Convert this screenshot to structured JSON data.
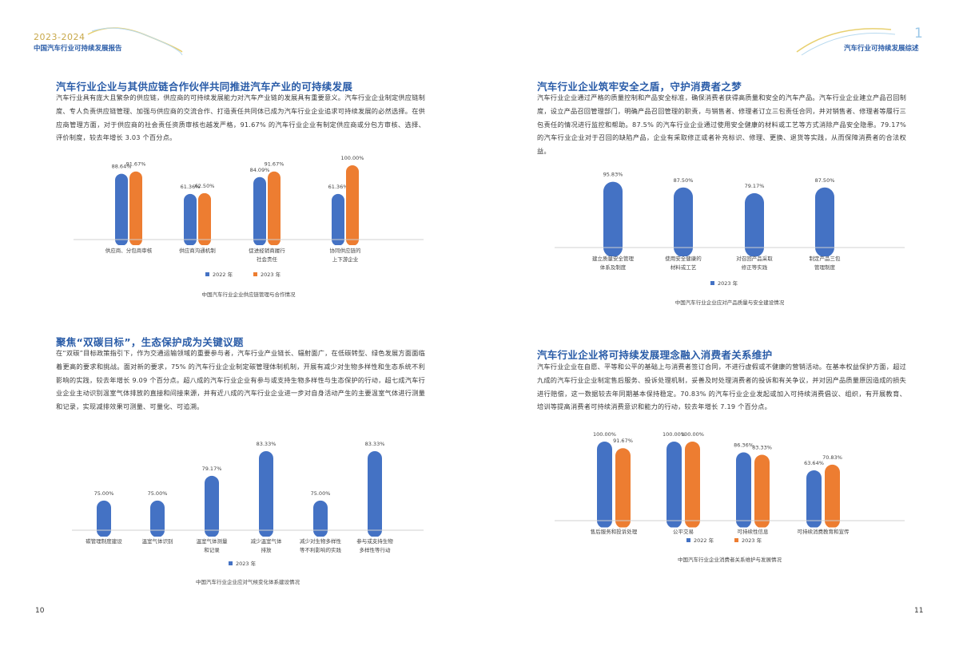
{
  "header_left": {
    "years": "2023-2024",
    "report_title": "中国汽车行业可持续发展报告"
  },
  "header_right": {
    "chapter_number": "1",
    "chapter_title": "汽车行业可持续发展综述"
  },
  "page_numbers": {
    "left": "10",
    "right": "11"
  },
  "sections": [
    {
      "title": "汽车行业企业与其供应链合作伙伴共同推进汽车产业的可持续发展",
      "body": "汽车行业具有庞大且繁杂的供应链，供应商的可持续发展能力对汽车产业链的发展具有重要意义。汽车行业企业制定供应链制度、专人负责供应链管理、加强与供应商的交流合作、打造责任共同体已成为汽车行业企业追求可持续发展的必然选择。在供应商管理方面，对于供应商的社会责任资质审核也越发严格，91.67% 的汽车行业企业有制定供应商或分包方审核、选择、评价制度，较去年增长 3.03 个百分点。"
    },
    {
      "title": "汽车行业企业筑牢安全之盾，守护消费者之梦",
      "body": "汽车行业企业通过严格的质量控制和产品安全标准，确保消费者获得高质量和安全的汽车产品。汽车行业企业建立产品召回制度，设立产品召回管理部门，明确产品召回管理的职责，与销售者、修理者订立三包责任合同，并对销售者、修理者等履行三包责任的情况进行监控和帮助。87.5% 的汽车行业企业通过使用安全健康的材料或工艺等方式消除产品安全隐患。79.17% 的汽车行业企业对于召回的缺陷产品，企业有采取修正或者补充标识、修理、更换、退货等实践，从而保障消费者的合法权益。"
    },
    {
      "title": "聚焦“双碳目标”，生态保护成为关键议题",
      "body": "在“双碳”目标政策指引下，作为交通运输领域的重要参与者，汽车行业产业链长、辐射面广，在低碳转型、绿色发展方面面临着更高的要求和挑战。面对新的要求，75% 的汽车行业企业制定碳管理体制机制，开展有减少对生物多样性和生态系统不利影响的实践，较去年增长 9.09 个百分点。超八成的汽车行业企业有参与或支持生物多样性与生态保护的行动，超七成汽车行业企业主动识别温室气体排放的直接和间接来源，并有近八成的汽车行业企业进一步对自身活动产生的主要温室气体进行测量和记录，实现减排效果可测量、可量化、可追溯。"
    },
    {
      "title": "汽车行业企业将可持续发展理念融入消费者关系维护",
      "body": "汽车行业企业在自愿、平等和公平的基础上与消费者签订合同，不进行虚假或不健康的营销活动。在基本权益保护方面，超过九成的汽车行业企业制定售后服务、投诉处理机制，妥善及时处理消费者的投诉和有关争议，并对因产品质量原因造成的损失进行赔偿，这一数据较去年同期基本保持稳定。70.83% 的汽车行业企业发起或加入可持续消费倡议、组织，有开展教育、培训等提高消费者可持续消费意识和能力的行动，较去年增长 7.19 个百分点。"
    }
  ],
  "chart_data": [
    {
      "type": "bar",
      "title": "中国汽车行业企业供应链管理与合作情况",
      "categories": [
        "供应商、分包商审核",
        "供应商沟通机制",
        "促进经销商履行\n社会责任",
        "协同供应链的\n上下游企业"
      ],
      "series": [
        {
          "name": "2022 年",
          "color": "#4472c4",
          "values": [
            88.64,
            61.36,
            84.09,
            61.36
          ]
        },
        {
          "name": "2023 年",
          "color": "#ed7d31",
          "values": [
            91.67,
            62.5,
            91.67,
            100.0
          ]
        }
      ],
      "ylim": [
        0,
        100
      ],
      "legend": "bottom"
    },
    {
      "type": "bar",
      "title": "中国汽车行业企业应对产品质量与安全建设情况",
      "categories": [
        "建立质量安全管理\n体系及制度",
        "使用安全健康的\n材料或工艺",
        "对召回产品采取\n修正等实践",
        "制定产品三包\n管理制度"
      ],
      "series": [
        {
          "name": "2023 年",
          "color": "#4472c4",
          "values": [
            95.83,
            87.5,
            79.17,
            87.5
          ]
        }
      ],
      "ylim": [
        0,
        100
      ],
      "legend": "bottom"
    },
    {
      "type": "bar",
      "title": "中国汽车行业企业应对气候变化体系建设情况",
      "categories": [
        "碳管理制度建设",
        "温室气体识别",
        "温室气体测量\n和记录",
        "减少温室气体\n排放",
        "减少对生物多样性\n等不利影响的实践",
        "参与或支持生物\n多样性等行动"
      ],
      "series": [
        {
          "name": "2023 年",
          "color": "#4472c4",
          "values": [
            75.0,
            75.0,
            79.17,
            83.33,
            75.0,
            83.33
          ]
        }
      ],
      "ylim": [
        70,
        84
      ],
      "legend": "bottom"
    },
    {
      "type": "bar",
      "title": "中国汽车行业企业消费者关系维护与发展情况",
      "categories": [
        "售后服务和投诉处理",
        "公平交易",
        "可持续性信息",
        "可持续消费教育和宣传"
      ],
      "series": [
        {
          "name": "2022 年",
          "color": "#4472c4",
          "values": [
            100.0,
            100.0,
            86.36,
            63.64
          ]
        },
        {
          "name": "2023 年",
          "color": "#ed7d31",
          "values": [
            91.67,
            100.0,
            83.33,
            70.83
          ]
        }
      ],
      "ylim": [
        0,
        100
      ],
      "legend": "bottom"
    }
  ]
}
